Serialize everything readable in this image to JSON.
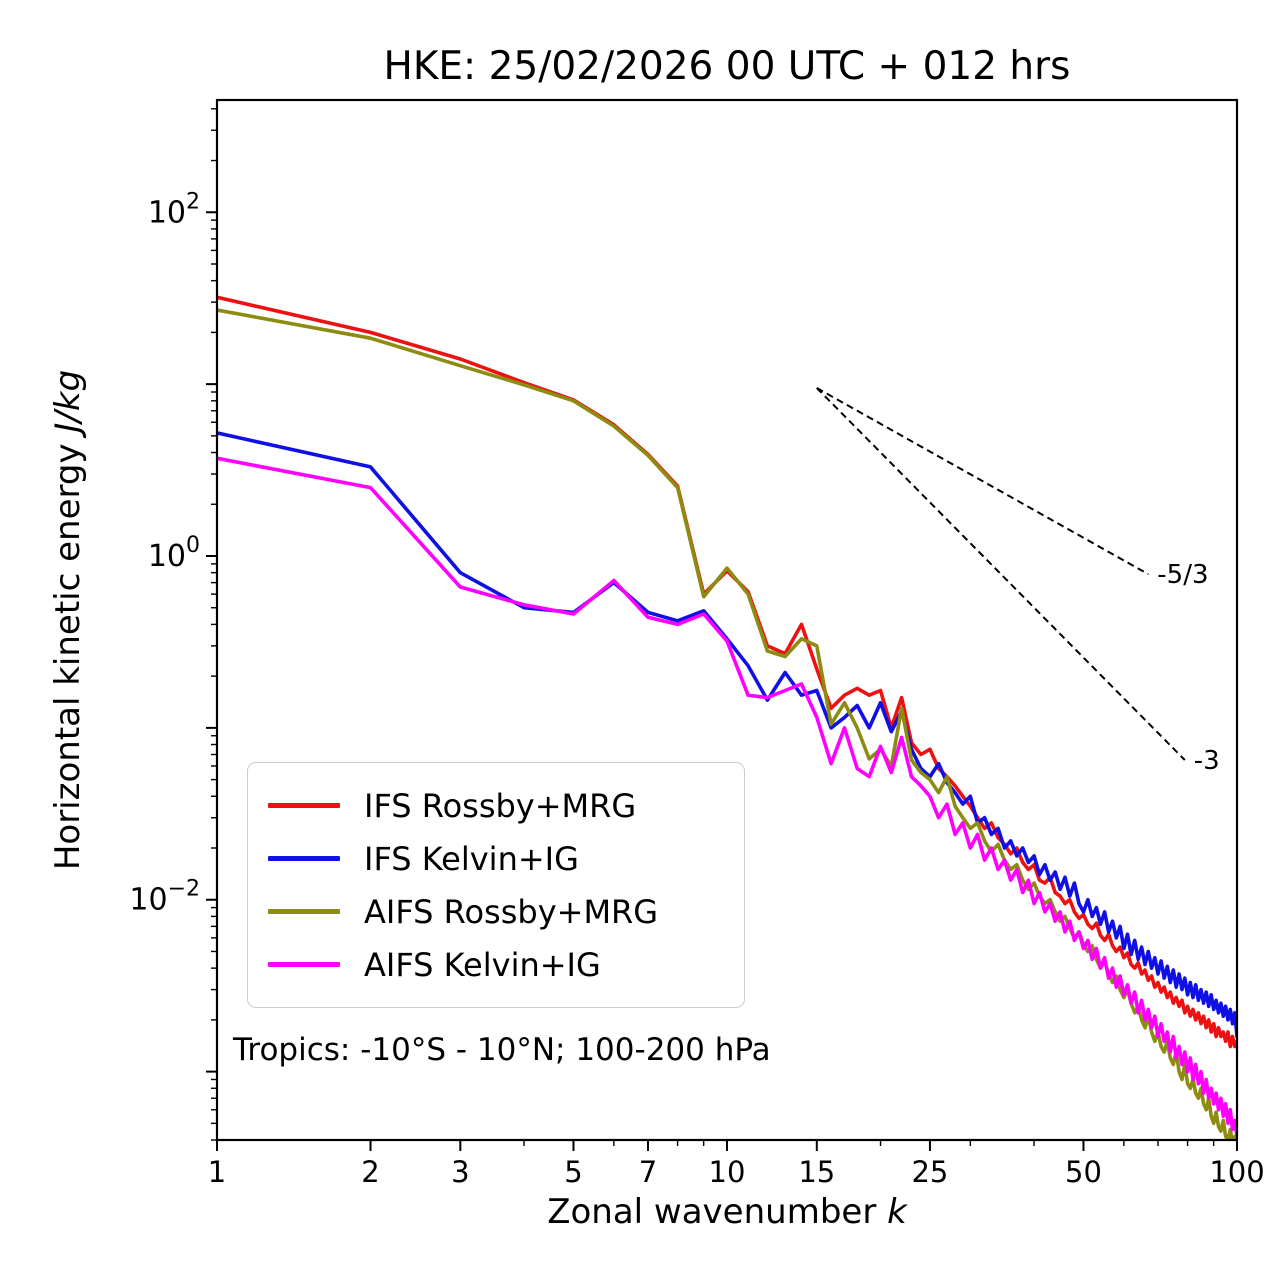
{
  "chart_data": {
    "type": "line",
    "title": "HKE: 25/02/2026 00 UTC + 012 hrs",
    "xlabel_text": "Zonal wavenumber ",
    "xlabel_math": "k",
    "ylabel_text": "Horizontal kinetic energy ",
    "ylabel_math": "J/kg",
    "annotation": "Tropics: -10°S - 10°N; 100-200 hPa",
    "x_scale": "log",
    "y_scale": "log",
    "xlim": [
      1,
      100
    ],
    "ylim": [
      0.0004,
      450
    ],
    "grid": false,
    "legend_position": "lower left",
    "axis_color": "#000000",
    "x_ticks": [
      {
        "value": 1,
        "label": "1"
      },
      {
        "value": 2,
        "label": "2"
      },
      {
        "value": 3,
        "label": "3"
      },
      {
        "value": 5,
        "label": "5"
      },
      {
        "value": 7,
        "label": "7"
      },
      {
        "value": 10,
        "label": "10"
      },
      {
        "value": 15,
        "label": "15"
      },
      {
        "value": 25,
        "label": "25"
      },
      {
        "value": 50,
        "label": "50"
      },
      {
        "value": 100,
        "label": "100"
      }
    ],
    "x_minor_ticks": [
      4,
      6,
      8,
      9,
      20,
      30,
      40,
      60,
      70,
      80,
      90
    ],
    "y_ticks": [
      {
        "value": 100,
        "exp": "2"
      },
      {
        "value": 1,
        "exp": "0"
      },
      {
        "value": 0.01,
        "exp": "−2"
      }
    ],
    "x": [
      1,
      2,
      3,
      4,
      5,
      6,
      7,
      8,
      9,
      10,
      11,
      12,
      13,
      14,
      15,
      16,
      17,
      18,
      19,
      20,
      21,
      22,
      23,
      24,
      25,
      26,
      27,
      28,
      29,
      30,
      31,
      32,
      33,
      34,
      35,
      36,
      37,
      38,
      39,
      40,
      41,
      42,
      43,
      44,
      45,
      46,
      47,
      48,
      49,
      50,
      51,
      52,
      53,
      54,
      55,
      56,
      57,
      58,
      59,
      60,
      61,
      62,
      63,
      64,
      65,
      66,
      67,
      68,
      69,
      70,
      71,
      72,
      73,
      74,
      75,
      76,
      77,
      78,
      79,
      80,
      81,
      82,
      83,
      84,
      85,
      86,
      87,
      88,
      89,
      90,
      91,
      92,
      93,
      94,
      95,
      96,
      97,
      98,
      99,
      100
    ],
    "series": [
      {
        "name": "IFS Rossby+MRG",
        "color": "#ee1111",
        "values": [
          32,
          20,
          14,
          10.2,
          8.1,
          5.8,
          3.9,
          2.55,
          0.6,
          0.82,
          0.62,
          0.3,
          0.27,
          0.4,
          0.22,
          0.13,
          0.155,
          0.17,
          0.155,
          0.165,
          0.1,
          0.15,
          0.082,
          0.07,
          0.075,
          0.058,
          0.052,
          0.046,
          0.04,
          0.035,
          0.03,
          0.026,
          0.028,
          0.023,
          0.021,
          0.0185,
          0.02,
          0.0165,
          0.015,
          0.016,
          0.013,
          0.0125,
          0.0135,
          0.011,
          0.0105,
          0.0095,
          0.01,
          0.0085,
          0.0078,
          0.0082,
          0.0072,
          0.0068,
          0.0073,
          0.0062,
          0.0058,
          0.0063,
          0.0054,
          0.005,
          0.0053,
          0.0046,
          0.0049,
          0.0042,
          0.004,
          0.0043,
          0.0037,
          0.0039,
          0.0034,
          0.0036,
          0.0031,
          0.0033,
          0.0029,
          0.0031,
          0.0027,
          0.0029,
          0.0025,
          0.0027,
          0.0024,
          0.0026,
          0.0022,
          0.0024,
          0.0021,
          0.0023,
          0.002,
          0.0022,
          0.0019,
          0.0021,
          0.0018,
          0.002,
          0.0017,
          0.0019,
          0.0016,
          0.0018,
          0.0016,
          0.0017,
          0.0015,
          0.0017,
          0.0014,
          0.0016,
          0.0014,
          0.0015
        ]
      },
      {
        "name": "IFS Kelvin+IG",
        "color": "#0f0fe6",
        "values": [
          5.2,
          3.3,
          0.8,
          0.5,
          0.47,
          0.7,
          0.47,
          0.42,
          0.48,
          0.33,
          0.23,
          0.145,
          0.21,
          0.155,
          0.165,
          0.1,
          0.115,
          0.135,
          0.1,
          0.14,
          0.095,
          0.125,
          0.075,
          0.058,
          0.052,
          0.062,
          0.048,
          0.042,
          0.036,
          0.04,
          0.028,
          0.03,
          0.024,
          0.026,
          0.02,
          0.022,
          0.018,
          0.02,
          0.0165,
          0.018,
          0.014,
          0.016,
          0.013,
          0.0145,
          0.0115,
          0.0135,
          0.0105,
          0.0125,
          0.0095,
          0.0085,
          0.01,
          0.008,
          0.009,
          0.0072,
          0.0085,
          0.0065,
          0.0075,
          0.006,
          0.007,
          0.0052,
          0.0063,
          0.0048,
          0.0058,
          0.0045,
          0.0053,
          0.0042,
          0.005,
          0.004,
          0.0046,
          0.0037,
          0.0044,
          0.0035,
          0.0041,
          0.0033,
          0.0039,
          0.0031,
          0.0037,
          0.003,
          0.0035,
          0.0028,
          0.0033,
          0.0027,
          0.0032,
          0.0026,
          0.003,
          0.0025,
          0.0029,
          0.0024,
          0.0028,
          0.0023,
          0.0026,
          0.0022,
          0.0025,
          0.0021,
          0.0024,
          0.002,
          0.0023,
          0.0019,
          0.0022,
          0.0016
        ]
      },
      {
        "name": "AIFS Rossby+MRG",
        "color": "#8c8c10",
        "values": [
          27,
          18.5,
          12.8,
          9.9,
          8.0,
          5.7,
          3.85,
          2.5,
          0.58,
          0.85,
          0.6,
          0.28,
          0.26,
          0.33,
          0.3,
          0.105,
          0.14,
          0.1,
          0.066,
          0.075,
          0.06,
          0.13,
          0.065,
          0.055,
          0.05,
          0.042,
          0.052,
          0.035,
          0.03,
          0.026,
          0.028,
          0.022,
          0.019,
          0.021,
          0.017,
          0.015,
          0.016,
          0.013,
          0.0115,
          0.0125,
          0.0105,
          0.0095,
          0.01,
          0.0085,
          0.0075,
          0.008,
          0.0068,
          0.006,
          0.0065,
          0.0055,
          0.005,
          0.0054,
          0.0045,
          0.004,
          0.0044,
          0.0037,
          0.0033,
          0.0036,
          0.003,
          0.0027,
          0.003,
          0.0025,
          0.0022,
          0.0024,
          0.002,
          0.0018,
          0.0021,
          0.0017,
          0.0015,
          0.0017,
          0.0014,
          0.0013,
          0.0015,
          0.0012,
          0.0011,
          0.0013,
          0.001,
          0.0009,
          0.0011,
          0.00085,
          0.0008,
          0.0009,
          0.00075,
          0.0007,
          0.0008,
          0.00065,
          0.0006,
          0.0007,
          0.00055,
          0.0005,
          0.00058,
          0.00048,
          0.00045,
          0.00052,
          0.00042,
          0.0004,
          0.00046,
          0.00038,
          0.00042,
          0.00036
        ]
      },
      {
        "name": "AIFS Kelvin+IG",
        "color": "#ff00ff",
        "values": [
          3.7,
          2.5,
          0.66,
          0.52,
          0.46,
          0.72,
          0.44,
          0.4,
          0.46,
          0.32,
          0.155,
          0.15,
          0.165,
          0.18,
          0.115,
          0.062,
          0.1,
          0.058,
          0.052,
          0.078,
          0.055,
          0.088,
          0.052,
          0.046,
          0.04,
          0.03,
          0.036,
          0.024,
          0.028,
          0.02,
          0.024,
          0.017,
          0.02,
          0.015,
          0.017,
          0.013,
          0.015,
          0.011,
          0.013,
          0.0095,
          0.011,
          0.0085,
          0.0095,
          0.0075,
          0.0085,
          0.0065,
          0.0075,
          0.0058,
          0.0065,
          0.0052,
          0.0058,
          0.0045,
          0.0052,
          0.004,
          0.0046,
          0.0035,
          0.004,
          0.0031,
          0.0036,
          0.0028,
          0.0032,
          0.0025,
          0.0029,
          0.0022,
          0.0026,
          0.002,
          0.0023,
          0.0018,
          0.0021,
          0.0016,
          0.0019,
          0.0015,
          0.0017,
          0.0013,
          0.0016,
          0.0012,
          0.0014,
          0.0011,
          0.0013,
          0.001,
          0.0012,
          0.0009,
          0.0011,
          0.00085,
          0.001,
          0.00075,
          0.0009,
          0.0007,
          0.0008,
          0.00065,
          0.00075,
          0.0006,
          0.0007,
          0.00055,
          0.00065,
          0.0005,
          0.0006,
          0.00046,
          0.00052,
          0.00042
        ]
      }
    ],
    "ref_lines": [
      {
        "label": "-5/3",
        "slope": -1.6667,
        "x_start": 15,
        "x_end": 67,
        "y_start": 9.5
      },
      {
        "label": "-3",
        "slope": -3,
        "x_start": 15,
        "x_end": 79,
        "y_start": 9.5
      }
    ]
  }
}
